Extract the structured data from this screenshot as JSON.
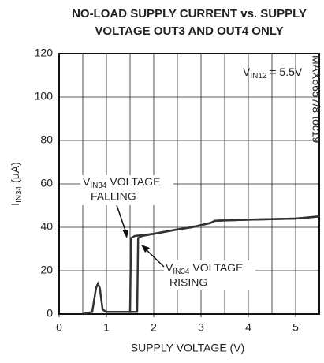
{
  "chart_data": {
    "type": "line",
    "title": [
      "NO-LOAD SUPPLY CURRENT vs. SUPPLY",
      "VOLTAGE OUT3 AND OUT4 ONLY"
    ],
    "xlabel": "SUPPLY VOLTAGE (V)",
    "ylabel": {
      "main": "I",
      "sub": "IN34",
      "rest": " (µA)"
    },
    "side_note": "MAX6657/8 toc19",
    "annotations": [
      {
        "main": "V",
        "sub": "IN12",
        "rest": " = 5.5V"
      },
      {
        "main": "V",
        "sub": "IN34",
        "rest": " VOLTAGE",
        "line2": "FALLING"
      },
      {
        "main": "V",
        "sub": "IN34",
        "rest": " VOLTAGE",
        "line2": "RISING"
      }
    ],
    "xlim": [
      0,
      5.5
    ],
    "ylim": [
      0,
      120
    ],
    "xticks": [
      0,
      1,
      2,
      3,
      4,
      5
    ],
    "yticks": [
      0,
      20,
      40,
      60,
      80,
      100,
      120
    ],
    "xgrid": [
      0.5,
      1,
      1.5,
      2,
      2.5,
      3,
      3.5,
      4,
      4.5,
      5
    ],
    "grid": true,
    "series": [
      {
        "color": "#333333",
        "x": [
          0.5,
          0.7,
          0.78,
          0.82,
          0.86,
          0.92,
          1.0,
          1.5,
          1.52,
          1.6,
          2.0,
          2.5,
          2.8,
          3.2,
          3.3,
          4.0,
          5.0,
          5.5
        ],
        "values": [
          0,
          1,
          12,
          14,
          12,
          2,
          1,
          1,
          35,
          36,
          37,
          39,
          40,
          42,
          43,
          43.5,
          44,
          45
        ]
      },
      {
        "color": "#333333",
        "x": [
          1.0,
          1.65,
          1.67,
          1.75,
          2.0,
          2.5,
          2.8,
          3.2,
          3.3,
          4.0,
          5.0,
          5.5
        ],
        "values": [
          1,
          1,
          35,
          36,
          37,
          39,
          40,
          42,
          43,
          43.5,
          44,
          45
        ]
      }
    ]
  }
}
